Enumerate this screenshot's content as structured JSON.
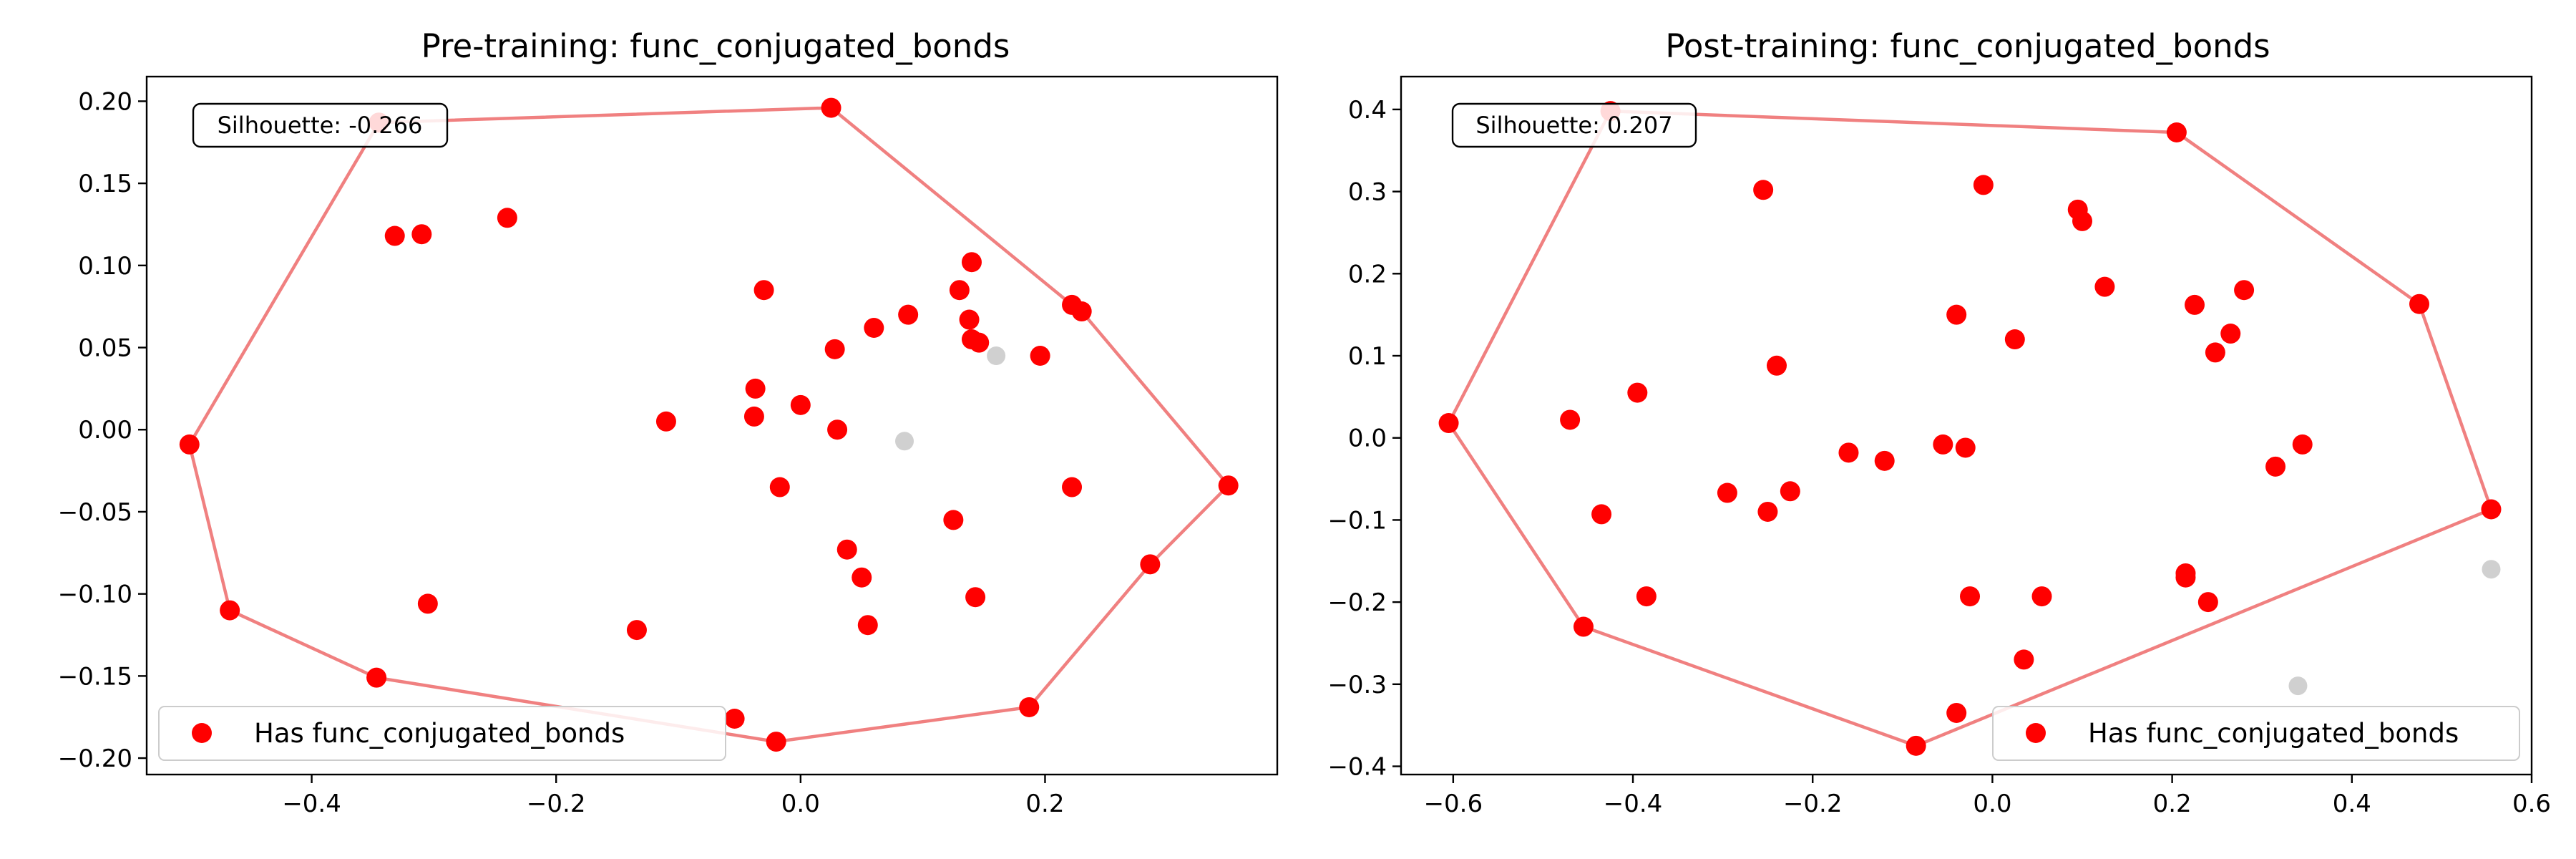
{
  "chart_data": [
    {
      "type": "scatter",
      "title": "Pre-training: func_conjugated_bonds",
      "xlim": [
        -0.535,
        0.39
      ],
      "ylim": [
        -0.21,
        0.215
      ],
      "xticks": [
        -0.4,
        -0.2,
        0.0,
        0.2
      ],
      "xtick_labels": [
        "−0.4",
        "−0.2",
        "0.0",
        "0.2"
      ],
      "yticks": [
        -0.2,
        -0.15,
        -0.1,
        -0.05,
        0.0,
        0.05,
        0.1,
        0.15,
        0.2
      ],
      "ytick_labels": [
        "−0.20",
        "−0.15",
        "−0.10",
        "−0.05",
        "0.00",
        "0.05",
        "0.10",
        "0.15",
        "0.20"
      ],
      "grid": false,
      "legend": {
        "position": "lower-left",
        "entries": [
          "Has func_conjugated_bonds"
        ]
      },
      "annotation": "Silhouette: -0.266",
      "colors": {
        "positive": "#ff0000",
        "negative": "#c0c0c0",
        "hull": "#f08080"
      },
      "series": [
        {
          "name": "Has func_conjugated_bonds",
          "points": [
            [
              0.025,
              0.196
            ],
            [
              -0.345,
              0.187
            ],
            [
              -0.24,
              0.129
            ],
            [
              -0.332,
              0.118
            ],
            [
              -0.31,
              0.119
            ],
            [
              0.14,
              0.102
            ],
            [
              -0.03,
              0.085
            ],
            [
              0.13,
              0.085
            ],
            [
              0.088,
              0.07
            ],
            [
              0.138,
              0.067
            ],
            [
              0.222,
              0.076
            ],
            [
              0.23,
              0.072
            ],
            [
              0.06,
              0.062
            ],
            [
              0.14,
              0.055
            ],
            [
              0.146,
              0.053
            ],
            [
              0.196,
              0.045
            ],
            [
              0.028,
              0.049
            ],
            [
              -0.037,
              0.025
            ],
            [
              0.0,
              0.015
            ],
            [
              -0.038,
              0.008
            ],
            [
              -0.11,
              0.005
            ],
            [
              0.03,
              0.0
            ],
            [
              -0.5,
              -0.009
            ],
            [
              0.35,
              -0.034
            ],
            [
              -0.017,
              -0.035
            ],
            [
              0.222,
              -0.035
            ],
            [
              0.125,
              -0.055
            ],
            [
              0.038,
              -0.073
            ],
            [
              0.05,
              -0.09
            ],
            [
              0.286,
              -0.082
            ],
            [
              0.143,
              -0.102
            ],
            [
              -0.305,
              -0.106
            ],
            [
              -0.467,
              -0.11
            ],
            [
              0.055,
              -0.119
            ],
            [
              -0.134,
              -0.122
            ],
            [
              -0.347,
              -0.151
            ],
            [
              -0.054,
              -0.176
            ],
            [
              0.187,
              -0.169
            ],
            [
              -0.02,
              -0.19
            ]
          ]
        },
        {
          "points": [
            [
              0.16,
              0.045
            ],
            [
              0.085,
              -0.007
            ]
          ]
        }
      ],
      "hull": [
        [
          0.025,
          0.196
        ],
        [
          0.222,
          0.076
        ],
        [
          0.23,
          0.072
        ],
        [
          0.35,
          -0.034
        ],
        [
          0.286,
          -0.082
        ],
        [
          0.187,
          -0.169
        ],
        [
          -0.02,
          -0.19
        ],
        [
          -0.347,
          -0.151
        ],
        [
          -0.467,
          -0.11
        ],
        [
          -0.5,
          -0.009
        ],
        [
          -0.345,
          0.187
        ],
        [
          0.025,
          0.196
        ]
      ]
    },
    {
      "type": "scatter",
      "title": "Post-training: func_conjugated_bonds",
      "xlim": [
        -0.658,
        0.6
      ],
      "ylim": [
        -0.41,
        0.44
      ],
      "xticks": [
        -0.6,
        -0.4,
        -0.2,
        0.0,
        0.2,
        0.4,
        0.6
      ],
      "xtick_labels": [
        "−0.6",
        "−0.4",
        "−0.2",
        "0.0",
        "0.2",
        "0.4",
        "0.6"
      ],
      "yticks": [
        -0.4,
        -0.3,
        -0.2,
        -0.1,
        0.0,
        0.1,
        0.2,
        0.3,
        0.4
      ],
      "ytick_labels": [
        "−0.4",
        "−0.3",
        "−0.2",
        "−0.1",
        "0.0",
        "0.1",
        "0.2",
        "0.3",
        "0.4"
      ],
      "grid": false,
      "legend": {
        "position": "lower-right",
        "entries": [
          "Has func_conjugated_bonds"
        ]
      },
      "annotation": "Silhouette: 0.207",
      "colors": {
        "positive": "#ff0000",
        "negative": "#c0c0c0",
        "hull": "#f08080"
      },
      "series": [
        {
          "name": "Has func_conjugated_bonds",
          "points": [
            [
              -0.425,
              0.398
            ],
            [
              0.205,
              0.372
            ],
            [
              -0.255,
              0.302
            ],
            [
              -0.01,
              0.308
            ],
            [
              0.095,
              0.278
            ],
            [
              0.1,
              0.264
            ],
            [
              0.125,
              0.184
            ],
            [
              0.225,
              0.162
            ],
            [
              0.28,
              0.18
            ],
            [
              0.475,
              0.163
            ],
            [
              -0.04,
              0.15
            ],
            [
              0.025,
              0.12
            ],
            [
              0.265,
              0.127
            ],
            [
              0.248,
              0.104
            ],
            [
              -0.24,
              0.088
            ],
            [
              -0.395,
              0.055
            ],
            [
              -0.47,
              0.022
            ],
            [
              -0.605,
              0.018
            ],
            [
              -0.055,
              -0.008
            ],
            [
              -0.03,
              -0.012
            ],
            [
              -0.16,
              -0.018
            ],
            [
              -0.12,
              -0.028
            ],
            [
              0.345,
              -0.008
            ],
            [
              0.315,
              -0.035
            ],
            [
              -0.295,
              -0.067
            ],
            [
              -0.225,
              -0.065
            ],
            [
              -0.25,
              -0.09
            ],
            [
              -0.435,
              -0.093
            ],
            [
              0.555,
              -0.087
            ],
            [
              -0.385,
              -0.193
            ],
            [
              -0.025,
              -0.193
            ],
            [
              0.055,
              -0.193
            ],
            [
              0.215,
              -0.165
            ],
            [
              0.215,
              -0.17
            ],
            [
              0.24,
              -0.2
            ],
            [
              -0.455,
              -0.23
            ],
            [
              0.035,
              -0.27
            ],
            [
              -0.04,
              -0.335
            ],
            [
              -0.085,
              -0.375
            ]
          ]
        },
        {
          "points": [
            [
              0.555,
              -0.16
            ],
            [
              0.34,
              -0.302
            ]
          ]
        }
      ],
      "hull": [
        [
          -0.425,
          0.398
        ],
        [
          0.205,
          0.372
        ],
        [
          0.475,
          0.163
        ],
        [
          0.555,
          -0.087
        ],
        [
          -0.085,
          -0.375
        ],
        [
          -0.455,
          -0.23
        ],
        [
          -0.605,
          0.018
        ],
        [
          -0.425,
          0.398
        ]
      ]
    }
  ]
}
